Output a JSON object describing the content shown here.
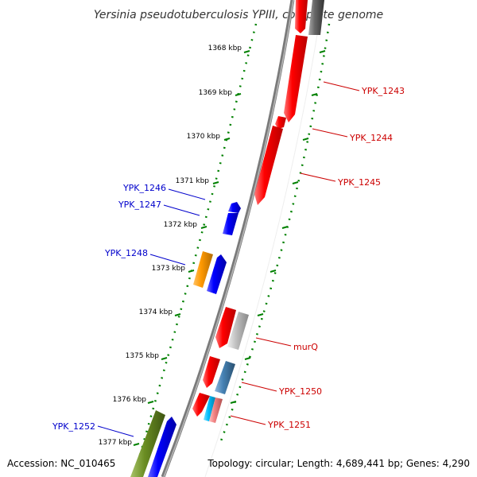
{
  "title": "Yersinia pseudotuberculosis YPIII, complete genome",
  "footer": {
    "accession": "Accession: NC_010465",
    "summary": "Topology: circular; Length: 4,689,441 bp; Genes: 4,290"
  },
  "ticks": [
    "1368 kbp",
    "1369 kbp",
    "1370 kbp",
    "1371 kbp",
    "1372 kbp",
    "1373 kbp",
    "1374 kbp",
    "1375 kbp",
    "1376 kbp",
    "1377 kbp"
  ],
  "colors": {
    "forward_gene": "#ff0000",
    "reverse_gene": "#0000ff",
    "pseudo_gene": "#ff8c00",
    "trna": "#bbbbbb",
    "backbone": "#808080",
    "tick_mark": "#008000",
    "forward_label": "#cc0000",
    "reverse_label": "#0000cc",
    "rna_green": "#6b8e23",
    "steel": "#4682b4",
    "cyan": "#00bfff",
    "pink": "#f08080"
  },
  "labels_right": [
    "YPK_1243",
    "YPK_1244",
    "YPK_1245",
    "murQ",
    "YPK_1250",
    "YPK_1251"
  ],
  "labels_left": [
    "YPK_1246",
    "YPK_1247",
    "YPK_1248",
    "YPK_1252"
  ]
}
